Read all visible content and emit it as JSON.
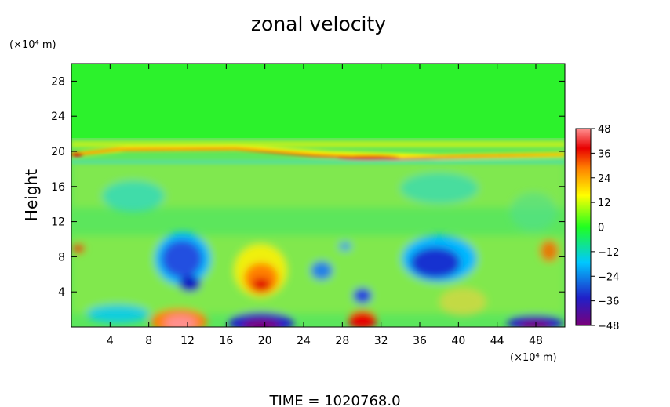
{
  "chart_data": {
    "type": "heatmap",
    "title": "zonal velocity",
    "ylabel": "Height",
    "y_unit": "(×10⁴ m)",
    "x_unit": "(×10⁴ m)",
    "xlim": [
      0,
      51
    ],
    "ylim": [
      0,
      30
    ],
    "x_ticks": [
      "4",
      "8",
      "12",
      "16",
      "20",
      "24",
      "28",
      "32",
      "36",
      "40",
      "44",
      "48"
    ],
    "y_ticks": [
      "4",
      "8",
      "12",
      "16",
      "20",
      "24",
      "28"
    ],
    "colorbar": {
      "range": [
        -48,
        48
      ],
      "ticks": [
        "48",
        "36",
        "24",
        "12",
        "0",
        "−12",
        "−24",
        "−36",
        "−48"
      ],
      "colors_low_to_high": [
        "#7a007a",
        "#2020c8",
        "#00c8ff",
        "#20ff20",
        "#ffff00",
        "#ff8000",
        "#e80000",
        "#ff9090"
      ]
    },
    "field_features": [
      {
        "x": 0,
        "y": 20,
        "value": 40,
        "note": "jet layer near 20"
      },
      {
        "x": 10.5,
        "y": 8,
        "value": -34
      },
      {
        "x": 12,
        "y": 4.5,
        "value": -38
      },
      {
        "x": 12,
        "y": 1,
        "value": 48
      },
      {
        "x": 19.5,
        "y": 5,
        "value": 40
      },
      {
        "x": 19.5,
        "y": 0.8,
        "value": -48
      },
      {
        "x": 30,
        "y": 1,
        "value": 40
      },
      {
        "x": 30,
        "y": 3.5,
        "value": -36
      },
      {
        "x": 36.5,
        "y": 7.5,
        "value": -40
      },
      {
        "x": 48.5,
        "y": 0.8,
        "value": -48
      }
    ]
  },
  "footer": {
    "time_label": "TIME  =  1020768.0"
  }
}
